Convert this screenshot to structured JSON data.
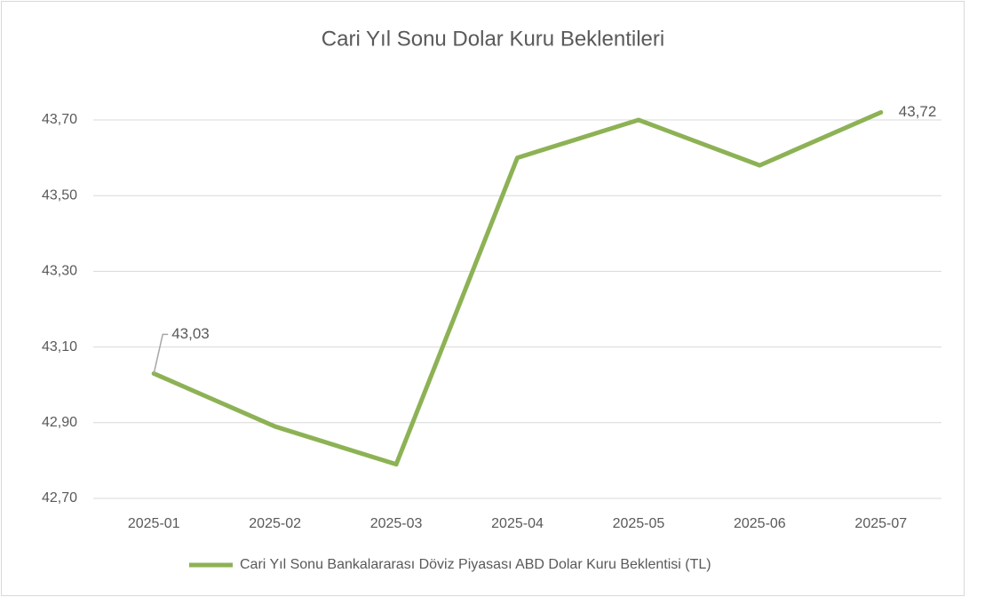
{
  "chart_data": {
    "type": "line",
    "title": "Cari Yıl Sonu Dolar Kuru Beklentileri",
    "categories": [
      "2025-01",
      "2025-02",
      "2025-03",
      "2025-04",
      "2025-05",
      "2025-06",
      "2025-07"
    ],
    "series": [
      {
        "name": "Cari Yıl Sonu Bankalararası Döviz Piyasası ABD Dolar Kuru Beklentisi (TL)",
        "color": "#8db255",
        "values": [
          43.03,
          42.89,
          42.79,
          43.6,
          43.7,
          43.58,
          43.72
        ],
        "value_labels": [
          "43,03",
          null,
          null,
          null,
          null,
          null,
          "43,72"
        ]
      }
    ],
    "ylim": [
      42.7,
      43.8
    ],
    "yticks": [
      {
        "value": 42.7,
        "label": "42,70"
      },
      {
        "value": 42.9,
        "label": "42,90"
      },
      {
        "value": 43.1,
        "label": "43,10"
      },
      {
        "value": 43.3,
        "label": "43,30"
      },
      {
        "value": 43.5,
        "label": "43,50"
      },
      {
        "value": 43.7,
        "label": "43,70"
      }
    ],
    "grid": true,
    "legend": "bottom"
  }
}
